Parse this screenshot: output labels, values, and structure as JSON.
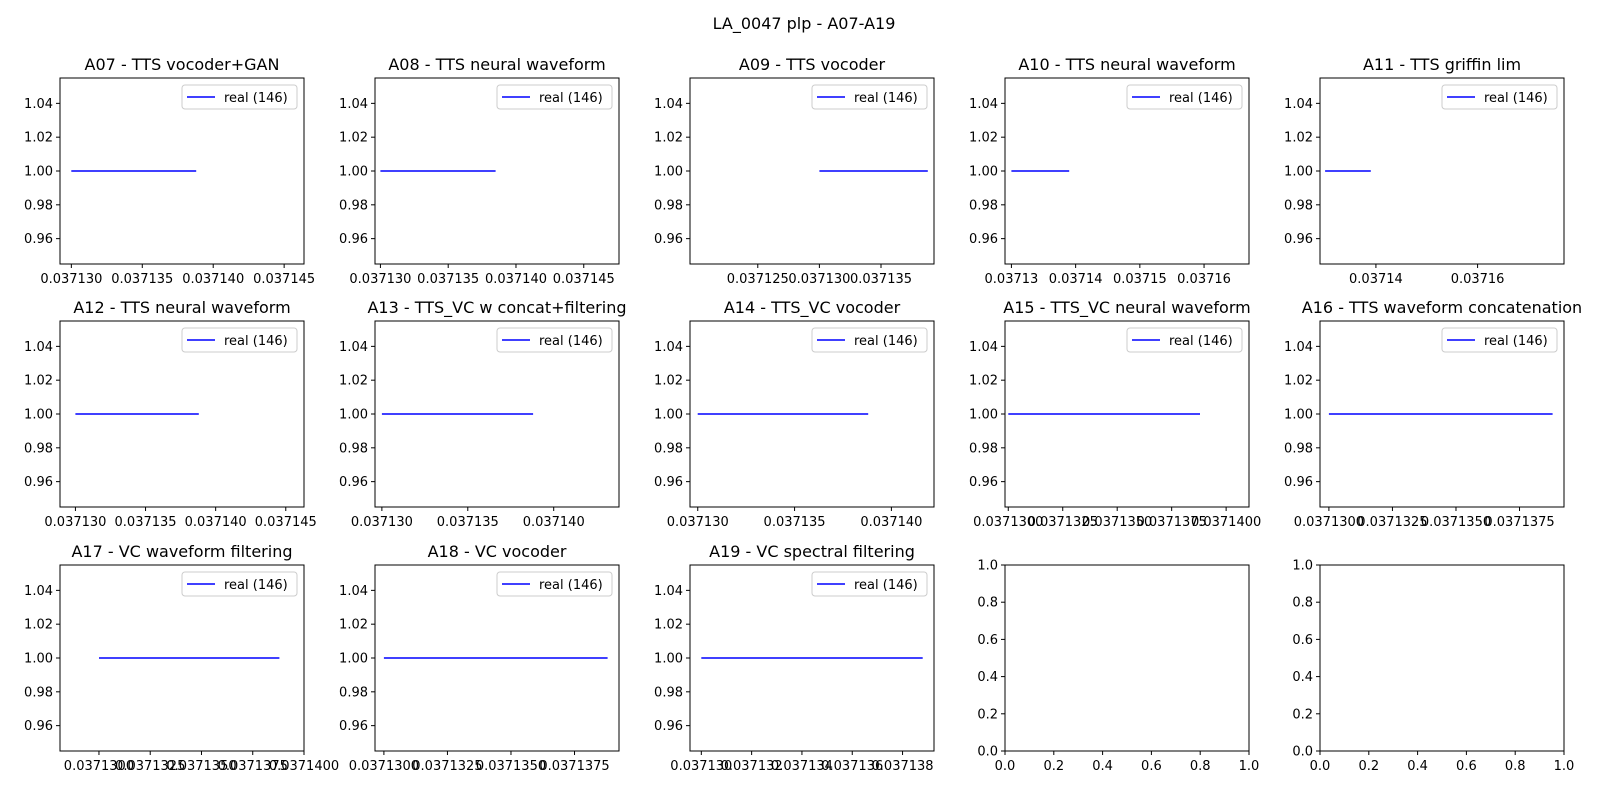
{
  "figure": {
    "suptitle": "LA_0047 plp - A07-A19"
  },
  "chart_data": [
    {
      "type": "line",
      "title": "A07 - TTS vocoder+GAN",
      "series": [
        {
          "name": "real (146)",
          "color": "#0000ff",
          "x": [
            0.03713,
            0.0371388
          ],
          "y": [
            1.0,
            1.0
          ]
        }
      ],
      "xlim": [
        0.0371292,
        0.0371464
      ],
      "ylim": [
        0.945,
        1.055
      ],
      "xticks": [
        0.03713,
        0.037135,
        0.03714,
        0.037145
      ],
      "xtick_labels": [
        "0.037130",
        "0.037135",
        "0.037140",
        "0.037145"
      ],
      "yticks": [
        0.96,
        0.98,
        1.0,
        1.02,
        1.04
      ],
      "ytick_labels": [
        "0.96",
        "0.98",
        "1.00",
        "1.02",
        "1.04"
      ],
      "legend": "upper right"
    },
    {
      "type": "line",
      "title": "A08 - TTS neural waveform",
      "series": [
        {
          "name": "real (146)",
          "color": "#0000ff",
          "x": [
            0.03713,
            0.0371385
          ],
          "y": [
            1.0,
            1.0
          ]
        }
      ],
      "xlim": [
        0.0371296,
        0.0371476
      ],
      "ylim": [
        0.945,
        1.055
      ],
      "xticks": [
        0.03713,
        0.037135,
        0.03714,
        0.037145
      ],
      "xtick_labels": [
        "0.037130",
        "0.037135",
        "0.037140",
        "0.037145"
      ],
      "yticks": [
        0.96,
        0.98,
        1.0,
        1.02,
        1.04
      ],
      "ytick_labels": [
        "0.96",
        "0.98",
        "1.00",
        "1.02",
        "1.04"
      ],
      "legend": "upper right"
    },
    {
      "type": "line",
      "title": "A09 - TTS vocoder",
      "series": [
        {
          "name": "real (146)",
          "color": "#0000ff",
          "x": [
            0.03713,
            0.0371388
          ],
          "y": [
            1.0,
            1.0
          ]
        }
      ],
      "xlim": [
        0.0371195,
        0.0371393
      ],
      "ylim": [
        0.945,
        1.055
      ],
      "xticks": [
        0.037125,
        0.03713,
        0.037135
      ],
      "xtick_labels": [
        "0.037125",
        "0.037130",
        "0.037135"
      ],
      "yticks": [
        0.96,
        0.98,
        1.0,
        1.02,
        1.04
      ],
      "ytick_labels": [
        "0.96",
        "0.98",
        "1.00",
        "1.02",
        "1.04"
      ],
      "legend": "upper right"
    },
    {
      "type": "line",
      "title": "A10 - TTS neural waveform",
      "series": [
        {
          "name": "real (146)",
          "color": "#0000ff",
          "x": [
            0.03713,
            0.037139
          ],
          "y": [
            1.0,
            1.0
          ]
        }
      ],
      "xlim": [
        0.037129,
        0.037167
      ],
      "ylim": [
        0.945,
        1.055
      ],
      "xticks": [
        0.03713,
        0.03714,
        0.03715,
        0.03716
      ],
      "xtick_labels": [
        "0.03713",
        "0.03714",
        "0.03715",
        "0.03716"
      ],
      "yticks": [
        0.96,
        0.98,
        1.0,
        1.02,
        1.04
      ],
      "ytick_labels": [
        "0.96",
        "0.98",
        "1.00",
        "1.02",
        "1.04"
      ],
      "legend": "upper right"
    },
    {
      "type": "line",
      "title": "A11 - TTS griffin lim",
      "series": [
        {
          "name": "real (146)",
          "color": "#0000ff",
          "x": [
            0.03713,
            0.037139
          ],
          "y": [
            1.0,
            1.0
          ]
        }
      ],
      "xlim": [
        0.037129,
        0.037177
      ],
      "ylim": [
        0.945,
        1.055
      ],
      "xticks": [
        0.03714,
        0.03716
      ],
      "xtick_labels": [
        "0.03714",
        "0.03716"
      ],
      "yticks": [
        0.96,
        0.98,
        1.0,
        1.02,
        1.04
      ],
      "ytick_labels": [
        "0.96",
        "0.98",
        "1.00",
        "1.02",
        "1.04"
      ],
      "legend": "upper right"
    },
    {
      "type": "line",
      "title": "A12 - TTS neural waveform",
      "series": [
        {
          "name": "real (146)",
          "color": "#0000ff",
          "x": [
            0.03713,
            0.0371388
          ],
          "y": [
            1.0,
            1.0
          ]
        }
      ],
      "xlim": [
        0.0371289,
        0.0371463
      ],
      "ylim": [
        0.945,
        1.055
      ],
      "xticks": [
        0.03713,
        0.037135,
        0.03714,
        0.037145
      ],
      "xtick_labels": [
        "0.037130",
        "0.037135",
        "0.037140",
        "0.037145"
      ],
      "yticks": [
        0.96,
        0.98,
        1.0,
        1.02,
        1.04
      ],
      "ytick_labels": [
        "0.96",
        "0.98",
        "1.00",
        "1.02",
        "1.04"
      ],
      "legend": "upper right"
    },
    {
      "type": "line",
      "title": "A13 - TTS_VC w concat+filtering",
      "series": [
        {
          "name": "real (146)",
          "color": "#0000ff",
          "x": [
            0.03713,
            0.0371388
          ],
          "y": [
            1.0,
            1.0
          ]
        }
      ],
      "xlim": [
        0.0371296,
        0.0371438
      ],
      "ylim": [
        0.945,
        1.055
      ],
      "xticks": [
        0.03713,
        0.037135,
        0.03714
      ],
      "xtick_labels": [
        "0.037130",
        "0.037135",
        "0.037140"
      ],
      "yticks": [
        0.96,
        0.98,
        1.0,
        1.02,
        1.04
      ],
      "ytick_labels": [
        "0.96",
        "0.98",
        "1.00",
        "1.02",
        "1.04"
      ],
      "legend": "upper right"
    },
    {
      "type": "line",
      "title": "A14 - TTS_VC vocoder",
      "series": [
        {
          "name": "real (146)",
          "color": "#0000ff",
          "x": [
            0.03713,
            0.0371388
          ],
          "y": [
            1.0,
            1.0
          ]
        }
      ],
      "xlim": [
        0.0371296,
        0.0371422
      ],
      "ylim": [
        0.945,
        1.055
      ],
      "xticks": [
        0.03713,
        0.037135,
        0.03714
      ],
      "xtick_labels": [
        "0.037130",
        "0.037135",
        "0.037140"
      ],
      "yticks": [
        0.96,
        0.98,
        1.0,
        1.02,
        1.04
      ],
      "ytick_labels": [
        "0.96",
        "0.98",
        "1.00",
        "1.02",
        "1.04"
      ],
      "legend": "upper right"
    },
    {
      "type": "line",
      "title": "A15 - TTS_VC neural waveform",
      "series": [
        {
          "name": "real (146)",
          "color": "#0000ff",
          "x": [
            0.03713,
            0.0371388
          ],
          "y": [
            1.0,
            1.0
          ]
        }
      ],
      "xlim": [
        0.03712985,
        0.03714105
      ],
      "ylim": [
        0.945,
        1.055
      ],
      "xticks": [
        0.03713,
        0.0371325,
        0.037135,
        0.0371375,
        0.03714
      ],
      "xtick_labels": [
        "0.0371300",
        "0.0371325",
        "0.0371350",
        "0.0371375",
        "0.0371400"
      ],
      "yticks": [
        0.96,
        0.98,
        1.0,
        1.02,
        1.04
      ],
      "ytick_labels": [
        "0.96",
        "0.98",
        "1.00",
        "1.02",
        "1.04"
      ],
      "legend": "upper right"
    },
    {
      "type": "line",
      "title": "A16 - TTS waveform concatenation",
      "series": [
        {
          "name": "real (146)",
          "color": "#0000ff",
          "x": [
            0.03713,
            0.0371388
          ],
          "y": [
            1.0,
            1.0
          ]
        }
      ],
      "xlim": [
        0.03712965,
        0.03713925
      ],
      "ylim": [
        0.945,
        1.055
      ],
      "xticks": [
        0.03713,
        0.0371325,
        0.037135,
        0.0371375
      ],
      "xtick_labels": [
        "0.0371300",
        "0.0371325",
        "0.0371350",
        "0.0371375"
      ],
      "yticks": [
        0.96,
        0.98,
        1.0,
        1.02,
        1.04
      ],
      "ytick_labels": [
        "0.96",
        "0.98",
        "1.00",
        "1.02",
        "1.04"
      ],
      "legend": "upper right"
    },
    {
      "type": "line",
      "title": "A17 - VC waveform filtering",
      "series": [
        {
          "name": "real (146)",
          "color": "#0000ff",
          "x": [
            0.03713,
            0.0371388
          ],
          "y": [
            1.0,
            1.0
          ]
        }
      ],
      "xlim": [
        0.0371281,
        0.03714
      ],
      "ylim": [
        0.945,
        1.055
      ],
      "xticks": [
        0.03713,
        0.0371325,
        0.037135,
        0.0371375,
        0.03714
      ],
      "xtick_labels": [
        "0.0371300",
        "0.0371325",
        "0.0371350",
        "0.0371375",
        "0.0371400"
      ],
      "yticks": [
        0.96,
        0.98,
        1.0,
        1.02,
        1.04
      ],
      "ytick_labels": [
        "0.96",
        "0.98",
        "1.00",
        "1.02",
        "1.04"
      ],
      "legend": "upper right"
    },
    {
      "type": "line",
      "title": "A18 - VC vocoder",
      "series": [
        {
          "name": "real (146)",
          "color": "#0000ff",
          "x": [
            0.03713,
            0.0371388
          ],
          "y": [
            1.0,
            1.0
          ]
        }
      ],
      "xlim": [
        0.03712965,
        0.03713925
      ],
      "ylim": [
        0.945,
        1.055
      ],
      "xticks": [
        0.03713,
        0.0371325,
        0.037135,
        0.0371375
      ],
      "xtick_labels": [
        "0.0371300",
        "0.0371325",
        "0.0371350",
        "0.0371375"
      ],
      "yticks": [
        0.96,
        0.98,
        1.0,
        1.02,
        1.04
      ],
      "ytick_labels": [
        "0.96",
        "0.98",
        "1.00",
        "1.02",
        "1.04"
      ],
      "legend": "upper right"
    },
    {
      "type": "line",
      "title": "A19 - VC spectral filtering",
      "series": [
        {
          "name": "real (146)",
          "color": "#0000ff",
          "x": [
            0.03713,
            0.0371388
          ],
          "y": [
            1.0,
            1.0
          ]
        }
      ],
      "xlim": [
        0.03712955,
        0.03713925
      ],
      "ylim": [
        0.945,
        1.055
      ],
      "xticks": [
        0.03713,
        0.037132,
        0.037134,
        0.037136,
        0.037138
      ],
      "xtick_labels": [
        "0.037130",
        "0.037132",
        "0.037134",
        "0.037136",
        "0.037138"
      ],
      "yticks": [
        0.96,
        0.98,
        1.0,
        1.02,
        1.04
      ],
      "ytick_labels": [
        "0.96",
        "0.98",
        "1.00",
        "1.02",
        "1.04"
      ],
      "legend": "upper right"
    },
    {
      "type": "line",
      "title": "",
      "series": [],
      "xlim": [
        0,
        1
      ],
      "ylim": [
        0,
        1
      ],
      "xticks": [
        0,
        0.2,
        0.4,
        0.6,
        0.8,
        1.0
      ],
      "xtick_labels": [
        "0.0",
        "0.2",
        "0.4",
        "0.6",
        "0.8",
        "1.0"
      ],
      "yticks": [
        0,
        0.2,
        0.4,
        0.6,
        0.8,
        1.0
      ],
      "ytick_labels": [
        "0.0",
        "0.2",
        "0.4",
        "0.6",
        "0.8",
        "1.0"
      ],
      "legend": "none"
    },
    {
      "type": "line",
      "title": "",
      "series": [],
      "xlim": [
        0,
        1
      ],
      "ylim": [
        0,
        1
      ],
      "xticks": [
        0,
        0.2,
        0.4,
        0.6,
        0.8,
        1.0
      ],
      "xtick_labels": [
        "0.0",
        "0.2",
        "0.4",
        "0.6",
        "0.8",
        "1.0"
      ],
      "yticks": [
        0,
        0.2,
        0.4,
        0.6,
        0.8,
        1.0
      ],
      "ytick_labels": [
        "0.0",
        "0.2",
        "0.4",
        "0.6",
        "0.8",
        "1.0"
      ],
      "legend": "none"
    }
  ]
}
